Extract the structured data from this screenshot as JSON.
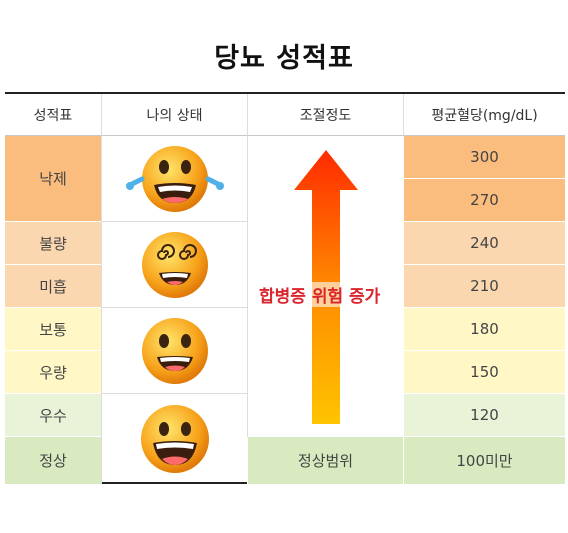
{
  "title": "당뇨 성적표",
  "headers": [
    "성적표",
    "나의 상태",
    "조절정도",
    "평균혈당(mg/dL)"
  ],
  "grades": [
    "낙제",
    "불량",
    "미흡",
    "보통",
    "우량",
    "우수",
    "정상"
  ],
  "glucose": [
    "300",
    "270",
    "240",
    "210",
    "180",
    "150",
    "120",
    "100미만"
  ],
  "arrow_label": "합병증 위험 증가",
  "normal_range": "정상범위",
  "faces": [
    "crying-face-icon",
    "dizzy-face-icon",
    "smiling-face-icon",
    "grinning-face-icon"
  ],
  "colors": {
    "fail": "#fbbd7d",
    "poor": "#fbd7b0",
    "average": "#fff8c6",
    "excellent": "#e8f3d8",
    "normal": "#d9eac0",
    "arrow_top": "#ff2a00",
    "arrow_bottom": "#ffc400"
  }
}
